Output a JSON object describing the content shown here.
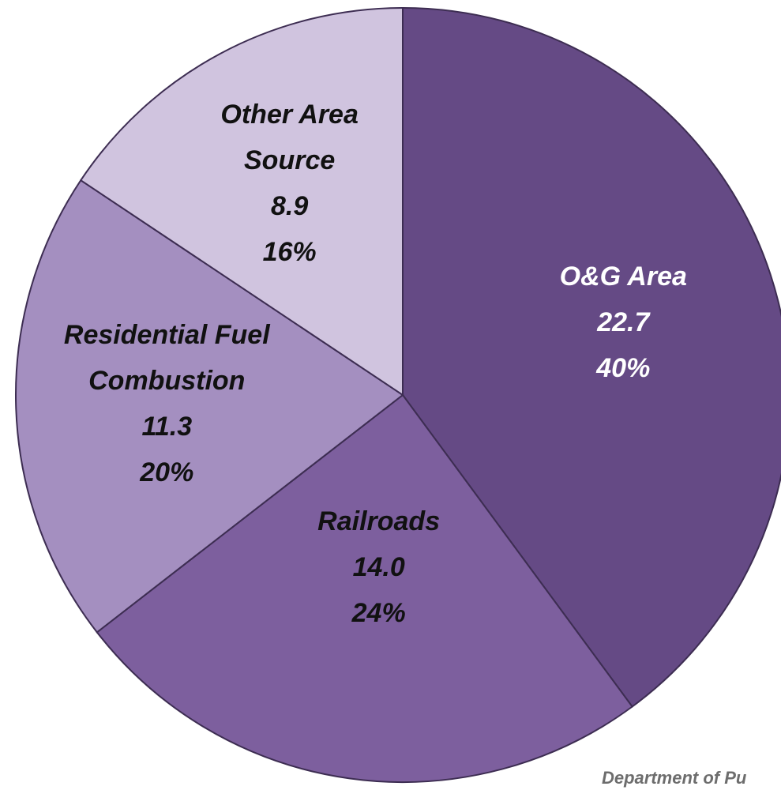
{
  "chart_data": {
    "type": "pie",
    "categories": [
      "O&G Area",
      "Railroads",
      "Residential Fuel Combustion",
      "Other Area Source"
    ],
    "values": [
      22.7,
      14.0,
      11.3,
      8.9
    ],
    "value_labels": [
      "22.7",
      "14.0",
      "11.3",
      "8.9"
    ],
    "percent_labels": [
      "40%",
      "24%",
      "20%",
      "16%"
    ],
    "colors": [
      "#654a85",
      "#7d5f9e",
      "#a48fc0",
      "#d0c4df"
    ],
    "label_colors": [
      "#ffffff",
      "#111111",
      "#111111",
      "#111111"
    ],
    "source": "Department of Pu"
  }
}
